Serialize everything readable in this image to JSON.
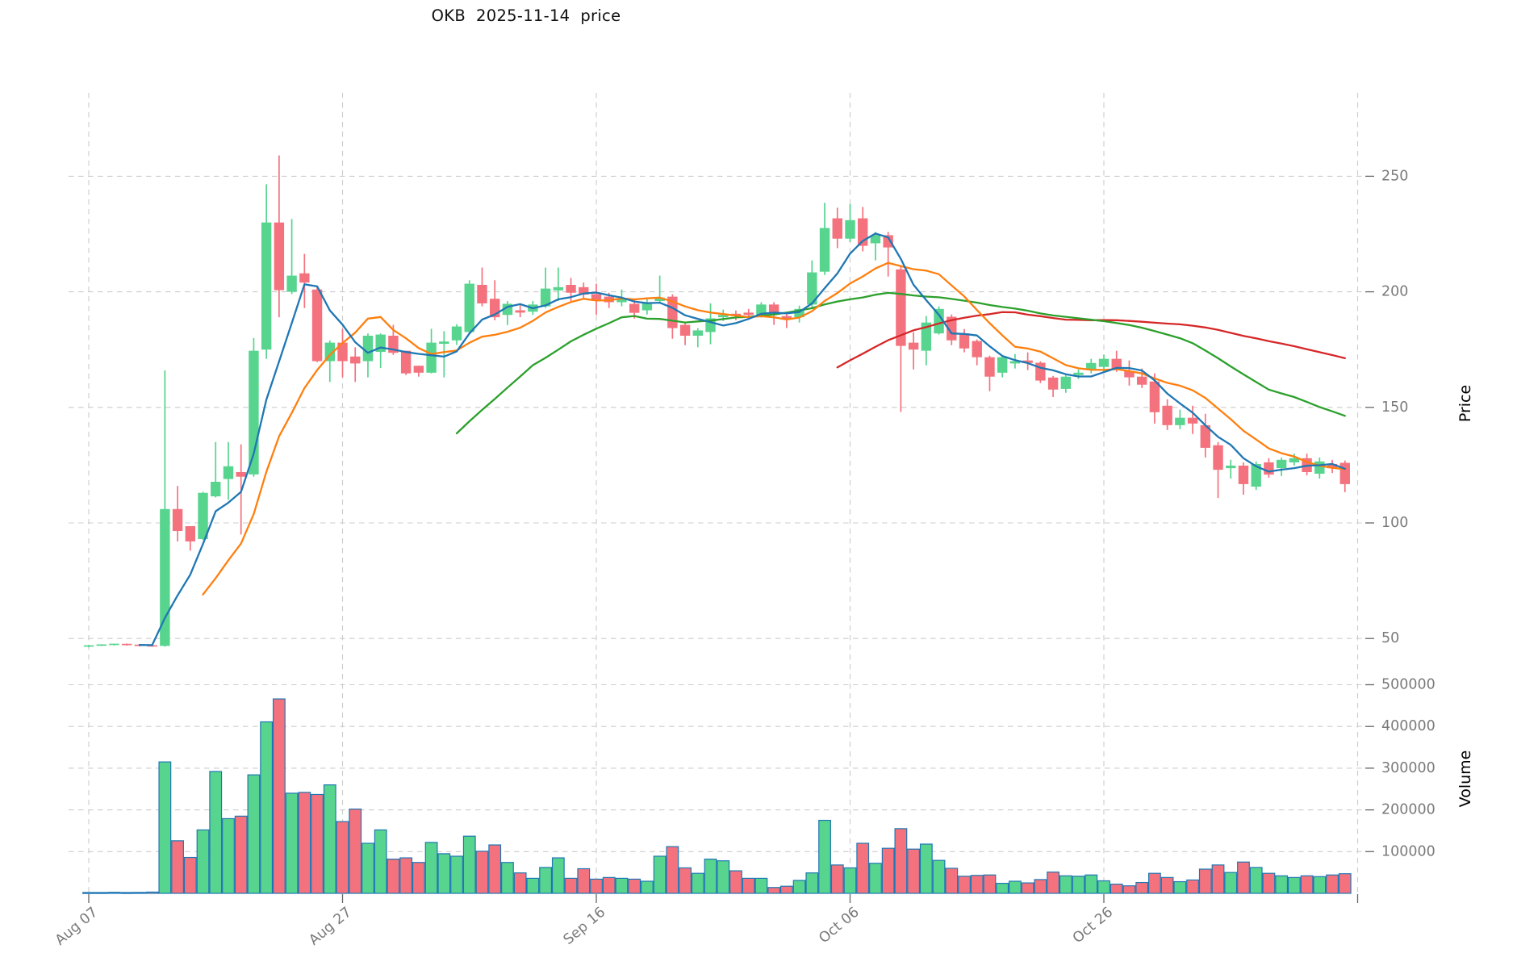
{
  "title": "OKB  2025-11-14  price",
  "colors": {
    "background": "#ffffff",
    "up": "#57d48e",
    "down": "#f4727e",
    "volume_edge": "#1f77b4",
    "grid": "#cccccc",
    "tick_text": "#7a7a7a",
    "axis_text": "#000000",
    "ma5": "#1f77b4",
    "ma10": "#ff7f0e",
    "ma30": "#2ca02c",
    "ma60": "#d62728"
  },
  "axes": {
    "price_label": "Price",
    "volume_label": "Volume",
    "price_ticks": [
      {
        "label": "250",
        "value": 250
      },
      {
        "label": "200",
        "value": 200
      },
      {
        "label": "150",
        "value": 150
      },
      {
        "label": "100",
        "value": 100
      },
      {
        "label": "50",
        "value": 50
      }
    ],
    "volume_ticks": [
      {
        "label": "500000",
        "value": 500000
      },
      {
        "label": "400000",
        "value": 400000
      },
      {
        "label": "300000",
        "value": 300000
      },
      {
        "label": "200000",
        "value": 200000
      },
      {
        "label": "100000",
        "value": 100000
      }
    ],
    "x_ticks": [
      {
        "label": "Aug 07",
        "day": 0
      },
      {
        "label": "Aug 27",
        "day": 20
      },
      {
        "label": "Sep 16",
        "day": 40
      },
      {
        "label": "Oct 06",
        "day": 60
      },
      {
        "label": "Oct 26",
        "day": 80
      },
      {
        "label": "",
        "day": 100
      }
    ]
  },
  "chart_data": {
    "type": "candlestick",
    "title": "OKB  2025-11-14  price",
    "ylabel": "Price",
    "ylabel2": "Volume",
    "price_ylim": [
      43,
      286
    ],
    "volume_ylim": [
      0,
      550000
    ],
    "grid": true,
    "x_tick_labels": [
      "Aug 07",
      "Aug 27",
      "Sep 16",
      "Oct 06",
      "Oct 26"
    ],
    "moving_averages": [
      {
        "name": "MA5",
        "window": 5,
        "color": "#1f77b4"
      },
      {
        "name": "MA10",
        "window": 10,
        "color": "#ff7f0e"
      },
      {
        "name": "MA30",
        "window": 30,
        "color": "#2ca02c"
      },
      {
        "name": "MA60",
        "window": 60,
        "color": "#d62728"
      }
    ],
    "columns": [
      "date",
      "open",
      "high",
      "low",
      "close",
      "volume"
    ],
    "candles": [
      [
        "2025-08-07",
        46.5,
        47.2,
        46.2,
        47.0,
        2000
      ],
      [
        "2025-08-08",
        47.0,
        47.5,
        46.8,
        47.3,
        2000
      ],
      [
        "2025-08-09",
        47.3,
        47.8,
        47.0,
        47.6,
        2500
      ],
      [
        "2025-08-10",
        47.6,
        47.8,
        46.9,
        47.2,
        2000
      ],
      [
        "2025-08-11",
        47.2,
        47.4,
        46.6,
        46.9,
        2200
      ],
      [
        "2025-08-12",
        46.9,
        47.1,
        46.4,
        46.7,
        3000
      ],
      [
        "2025-08-13",
        46.8,
        166.0,
        46.5,
        106.0,
        315000
      ],
      [
        "2025-08-14",
        106.0,
        116.0,
        92.0,
        96.5,
        126000
      ],
      [
        "2025-08-15",
        98.6,
        98.6,
        88.0,
        92.0,
        86000
      ],
      [
        "2025-08-16",
        93.0,
        113.5,
        92.7,
        113.0,
        152000
      ],
      [
        "2025-08-17",
        111.5,
        135.0,
        111.0,
        117.8,
        292000
      ],
      [
        "2025-08-18",
        119.0,
        135.0,
        110.0,
        124.5,
        179000
      ],
      [
        "2025-08-19",
        122.0,
        134.0,
        95.0,
        120.0,
        185000
      ],
      [
        "2025-08-20",
        121.0,
        180.0,
        120.0,
        174.5,
        284000
      ],
      [
        "2025-08-21",
        175.0,
        246.5,
        171.0,
        230.0,
        411000
      ],
      [
        "2025-08-22",
        230.0,
        259.0,
        189.0,
        200.7,
        466000
      ],
      [
        "2025-08-23",
        200.0,
        231.5,
        199.0,
        207.0,
        240000
      ],
      [
        "2025-08-24",
        208.0,
        216.4,
        193.0,
        204.0,
        242000
      ],
      [
        "2025-08-25",
        201.0,
        202.0,
        169.6,
        170.0,
        237000
      ],
      [
        "2025-08-26",
        170.0,
        179.0,
        161.0,
        178.0,
        260000
      ],
      [
        "2025-08-27",
        178.0,
        184.0,
        163.0,
        170.0,
        172000
      ],
      [
        "2025-08-28",
        172.0,
        176.0,
        161.0,
        169.0,
        202000
      ],
      [
        "2025-08-29",
        170.0,
        182.0,
        163.0,
        181.0,
        120000
      ],
      [
        "2025-08-30",
        174.0,
        182.0,
        167.0,
        181.5,
        152000
      ],
      [
        "2025-08-31",
        181.0,
        185.7,
        172.7,
        173.6,
        82000
      ],
      [
        "2025-09-01",
        174.5,
        174.5,
        164.0,
        164.7,
        85000
      ],
      [
        "2025-09-02",
        168.0,
        168.0,
        163.3,
        165.0,
        74000
      ],
      [
        "2025-09-03",
        165.0,
        184.0,
        164.7,
        178.0,
        122000
      ],
      [
        "2025-09-04",
        177.5,
        183.0,
        163.0,
        178.5,
        95000
      ],
      [
        "2025-09-05",
        179.0,
        186.0,
        177.0,
        185.0,
        89000
      ],
      [
        "2025-09-06",
        182.6,
        205.0,
        182.0,
        203.5,
        137000
      ],
      [
        "2025-09-07",
        203.0,
        210.5,
        193.7,
        195.0,
        101000
      ],
      [
        "2025-09-08",
        197.0,
        205.0,
        187.7,
        189.0,
        116000
      ],
      [
        "2025-09-09",
        190.0,
        196.0,
        185.6,
        194.8,
        74000
      ],
      [
        "2025-09-10",
        192.0,
        194.5,
        189.0,
        191.0,
        49000
      ],
      [
        "2025-09-11",
        191.4,
        196.0,
        190.0,
        194.5,
        36000
      ],
      [
        "2025-09-12",
        193.7,
        210.5,
        193.0,
        201.4,
        62000
      ],
      [
        "2025-09-13",
        200.6,
        210.5,
        196.0,
        202.0,
        85000
      ],
      [
        "2025-09-14",
        203.0,
        206.0,
        196.0,
        199.6,
        36000
      ],
      [
        "2025-09-15",
        202.0,
        204.0,
        196.6,
        198.8,
        59000
      ],
      [
        "2025-09-16",
        199.0,
        203.5,
        190.0,
        196.6,
        34000
      ],
      [
        "2025-09-17",
        197.9,
        199.6,
        193.0,
        195.5,
        38000
      ],
      [
        "2025-09-18",
        195.5,
        201.0,
        193.7,
        197.0,
        36000
      ],
      [
        "2025-09-19",
        194.8,
        196.8,
        188.4,
        190.9,
        34000
      ],
      [
        "2025-09-20",
        192.0,
        196.8,
        190.2,
        195.5,
        29000
      ],
      [
        "2025-09-21",
        196.0,
        207.0,
        194.8,
        197.5,
        89000
      ],
      [
        "2025-09-22",
        197.9,
        198.9,
        179.7,
        184.3,
        112000
      ],
      [
        "2025-09-23",
        185.7,
        187.0,
        176.9,
        181.0,
        61000
      ],
      [
        "2025-09-24",
        181.0,
        184.3,
        176.0,
        183.3,
        48000
      ],
      [
        "2025-09-25",
        182.6,
        195.0,
        177.3,
        188.5,
        82000
      ],
      [
        "2025-09-26",
        189.0,
        192.3,
        187.4,
        190.0,
        78000
      ],
      [
        "2025-09-27",
        190.5,
        191.9,
        187.7,
        189.5,
        54000
      ],
      [
        "2025-09-28",
        191.0,
        192.6,
        188.1,
        190.0,
        36000
      ],
      [
        "2025-09-29",
        190.0,
        195.5,
        188.8,
        194.5,
        36000
      ],
      [
        "2025-09-30",
        194.5,
        195.5,
        185.7,
        190.9,
        14000
      ],
      [
        "2025-10-01",
        189.5,
        190.9,
        184.3,
        188.4,
        17000
      ],
      [
        "2025-10-02",
        189.0,
        194.0,
        186.7,
        192.6,
        31000
      ],
      [
        "2025-10-03",
        194.5,
        213.6,
        192.5,
        208.4,
        49000
      ],
      [
        "2025-10-04",
        208.7,
        238.5,
        207.3,
        227.6,
        175000
      ],
      [
        "2025-10-05",
        231.8,
        236.4,
        218.9,
        223.0,
        68000
      ],
      [
        "2025-10-06",
        223.0,
        238.0,
        221.5,
        231.0,
        61000
      ],
      [
        "2025-10-07",
        231.8,
        236.7,
        217.5,
        219.9,
        120000
      ],
      [
        "2025-10-08",
        221.0,
        225.9,
        213.6,
        224.5,
        72000
      ],
      [
        "2025-10-09",
        224.5,
        225.9,
        206.6,
        219.2,
        108000
      ],
      [
        "2025-10-10",
        209.7,
        211.0,
        148.0,
        176.6,
        155000
      ],
      [
        "2025-10-11",
        178.0,
        182.5,
        166.4,
        175.0,
        106000
      ],
      [
        "2025-10-12",
        174.5,
        189.5,
        168.2,
        186.7,
        118000
      ],
      [
        "2025-10-13",
        182.0,
        193.7,
        181.5,
        192.6,
        79000
      ],
      [
        "2025-10-14",
        189.2,
        190.2,
        176.9,
        179.0,
        60000
      ],
      [
        "2025-10-15",
        182.0,
        183.9,
        173.8,
        175.5,
        41000
      ],
      [
        "2025-10-16",
        178.7,
        179.4,
        168.2,
        171.7,
        43000
      ],
      [
        "2025-10-17",
        171.7,
        172.4,
        157.0,
        163.3,
        44000
      ],
      [
        "2025-10-18",
        165.0,
        172.4,
        163.0,
        171.7,
        24000
      ],
      [
        "2025-10-19",
        169.0,
        173.1,
        166.8,
        170.0,
        29000
      ],
      [
        "2025-10-20",
        170.3,
        173.8,
        166.1,
        169.2,
        25000
      ],
      [
        "2025-10-21",
        169.3,
        169.9,
        160.5,
        161.6,
        33000
      ],
      [
        "2025-10-22",
        162.9,
        163.6,
        154.5,
        157.7,
        51000
      ],
      [
        "2025-10-23",
        158.0,
        164.0,
        156.3,
        163.3,
        42000
      ],
      [
        "2025-10-24",
        164.0,
        166.4,
        162.3,
        165.0,
        41000
      ],
      [
        "2025-10-25",
        166.4,
        171.0,
        164.7,
        169.2,
        44000
      ],
      [
        "2025-10-26",
        167.5,
        172.8,
        165.4,
        171.0,
        30000
      ],
      [
        "2025-10-27",
        171.0,
        174.5,
        165.4,
        166.8,
        22000
      ],
      [
        "2025-10-28",
        165.7,
        170.3,
        159.4,
        163.0,
        18000
      ],
      [
        "2025-10-29",
        163.3,
        166.8,
        158.4,
        159.8,
        26000
      ],
      [
        "2025-10-30",
        161.2,
        164.7,
        143.0,
        147.9,
        48000
      ],
      [
        "2025-10-31",
        150.7,
        153.5,
        140.2,
        142.3,
        38000
      ],
      [
        "2025-11-01",
        142.3,
        149.0,
        140.6,
        145.5,
        28000
      ],
      [
        "2025-11-02",
        145.5,
        150.7,
        138.5,
        143.0,
        32000
      ],
      [
        "2025-11-03",
        142.3,
        147.2,
        128.3,
        132.5,
        58000
      ],
      [
        "2025-11-04",
        133.6,
        135.0,
        110.8,
        123.0,
        68000
      ],
      [
        "2025-11-05",
        123.7,
        127.3,
        119.2,
        124.8,
        50000
      ],
      [
        "2025-11-06",
        124.8,
        126.2,
        112.2,
        116.8,
        75000
      ],
      [
        "2025-11-07",
        115.7,
        126.6,
        114.3,
        125.5,
        62000
      ],
      [
        "2025-11-08",
        126.2,
        128.0,
        119.6,
        120.9,
        48000
      ],
      [
        "2025-11-09",
        123.7,
        128.3,
        120.3,
        127.3,
        42000
      ],
      [
        "2025-11-10",
        126.2,
        130.0,
        124.8,
        128.0,
        38000
      ],
      [
        "2025-11-11",
        128.0,
        130.0,
        120.6,
        122.0,
        42000
      ],
      [
        "2025-11-12",
        121.3,
        128.3,
        119.2,
        126.6,
        40000
      ],
      [
        "2025-11-13",
        125.5,
        127.3,
        121.6,
        123.7,
        44000
      ],
      [
        "2025-11-14",
        126.0,
        127.0,
        113.3,
        116.8,
        47000
      ]
    ]
  }
}
